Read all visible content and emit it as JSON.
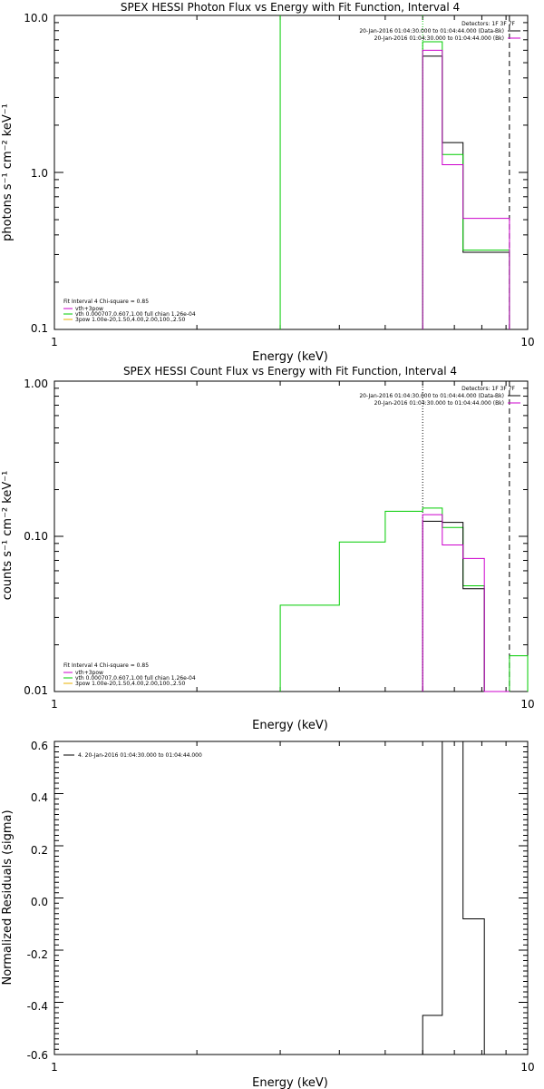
{
  "chart_data": [
    {
      "type": "line",
      "title": "SPEX HESSI Photon Flux vs Energy with Fit Function, Interval 4",
      "xlabel": "Energy (keV)",
      "ylabel": "photons s⁻¹ cm⁻² keV⁻¹",
      "xscale": "log",
      "yscale": "log",
      "xlim": [
        1,
        10
      ],
      "ylim": [
        0.1,
        10
      ],
      "xticklabels": [
        "1",
        "10"
      ],
      "yticks": [
        0.1,
        1.0,
        10.0
      ],
      "yticklabels": [
        "0.1",
        "1.0",
        "10.0"
      ],
      "header": [
        "Detectors: 1F 3F 7F",
        "20-Jan-2016 01:04:30.000 to 01:04:44.000 (Data-Bk)",
        "20-Jan-2016 01:04:30.000 to 01:04:44.000 (Bk)"
      ],
      "legend": [
        "Fit Interval  4    Chi-square = 0.85",
        "vth+3pow",
        "vth 0.000707,0.607,1.00  full chian 1.26e-04",
        "3pow 1.00e-20,1.50,4.00,2.00,100.,2.50"
      ],
      "vlines": [
        {
          "x": 3.0,
          "color": "#00cc00",
          "style": "solid"
        },
        {
          "x": 6.0,
          "color": "#00cc00",
          "style": "dotted"
        },
        {
          "x": 9.15,
          "color": "#000000",
          "style": "dashed"
        }
      ],
      "series": [
        {
          "color": "#000000",
          "bins": [
            [
              6.0,
              6.6,
              5.5
            ],
            [
              6.6,
              7.3,
              1.55
            ],
            [
              7.3,
              8.1,
              0.31
            ],
            [
              8.1,
              9.15,
              0.31
            ]
          ]
        },
        {
          "color": "#00cc00",
          "bins": [
            [
              6.0,
              6.6,
              6.8
            ],
            [
              6.6,
              7.3,
              1.3
            ],
            [
              7.3,
              8.1,
              0.32
            ],
            [
              8.1,
              9.15,
              0.32
            ]
          ]
        },
        {
          "color": "#cc00cc",
          "bins": [
            [
              6.0,
              6.6,
              6.0
            ],
            [
              6.6,
              7.3,
              1.12
            ],
            [
              7.3,
              8.1,
              0.51
            ],
            [
              8.1,
              9.15,
              0.51
            ]
          ]
        }
      ]
    },
    {
      "type": "line",
      "title": "SPEX HESSI Count Flux vs Energy with Fit Function, Interval 4",
      "xlabel": "Energy (keV)",
      "ylabel": "counts s⁻¹ cm⁻² keV⁻¹",
      "xscale": "log",
      "yscale": "log",
      "xlim": [
        1,
        10
      ],
      "ylim": [
        0.01,
        1
      ],
      "xticklabels": [
        "1",
        "10"
      ],
      "yticks": [
        0.01,
        0.1,
        1.0
      ],
      "yticklabels": [
        "0.01",
        "0.10",
        "1.00"
      ],
      "header": [
        "Detectors: 1F 3F 7F",
        "20-Jan-2016 01:04:30.000 to 01:04:44.000 (Data-Bk)",
        "20-Jan-2016 01:04:30.000 to 01:04:44.000 (Bk)"
      ],
      "legend": [
        "Fit Interval  4    Chi-square = 0.85",
        "vth+3pow",
        "vth 0.000707,0.607,1.00  full chian 1.26e-04",
        "3pow 1.00e-20,1.50,4.00,2.00,100.,2.50"
      ],
      "vlines": [
        {
          "x": 6.0,
          "color": "#000000",
          "style": "dotted"
        },
        {
          "x": 9.15,
          "color": "#000000",
          "style": "dashed"
        }
      ],
      "series": [
        {
          "color": "#00cc00",
          "bins": [
            [
              3.0,
              4.0,
              0.036
            ],
            [
              4.0,
              5.0,
              0.092
            ],
            [
              5.0,
              6.0,
              0.145
            ],
            [
              6.0,
              6.6,
              0.152
            ],
            [
              6.6,
              7.3,
              0.114
            ],
            [
              7.3,
              8.1,
              0.048
            ],
            [
              8.1,
              9.15,
              0.01
            ],
            [
              9.15,
              10.0,
              0.017
            ]
          ]
        },
        {
          "color": "#000000",
          "bins": [
            [
              6.0,
              6.6,
              0.125
            ],
            [
              6.6,
              7.3,
              0.123
            ],
            [
              7.3,
              8.1,
              0.046
            ],
            [
              8.1,
              9.15,
              0.01
            ]
          ]
        },
        {
          "color": "#cc00cc",
          "bins": [
            [
              6.0,
              6.6,
              0.138
            ],
            [
              6.6,
              7.3,
              0.088
            ],
            [
              7.3,
              8.1,
              0.072
            ],
            [
              8.1,
              9.15,
              0.01
            ]
          ]
        }
      ]
    },
    {
      "type": "line",
      "title": "",
      "xlabel": "Energy (keV)",
      "ylabel": "Normalized Residuals (sigma)",
      "xscale": "log",
      "yscale": "linear",
      "xlim": [
        1,
        10
      ],
      "ylim": [
        -0.6,
        0.6
      ],
      "xticklabels": [
        "1",
        "10"
      ],
      "yticks": [
        -0.6,
        -0.4,
        -0.2,
        0.0,
        0.2,
        0.4,
        0.6
      ],
      "yticklabels": [
        "-0.6",
        "-0.4",
        "-0.2",
        "0.0",
        "0.2",
        "0.4",
        "0.6"
      ],
      "legend": [
        "4. 20-Jan-2016 01:04:30.000 to 01:04:44.000"
      ],
      "series": [
        {
          "color": "#000000",
          "bins": [
            [
              6.0,
              6.6,
              -0.45
            ],
            [
              6.6,
              7.3,
              0.6
            ],
            [
              7.3,
              8.1,
              -0.08
            ],
            [
              8.1,
              9.15,
              -0.6
            ]
          ]
        }
      ]
    }
  ]
}
